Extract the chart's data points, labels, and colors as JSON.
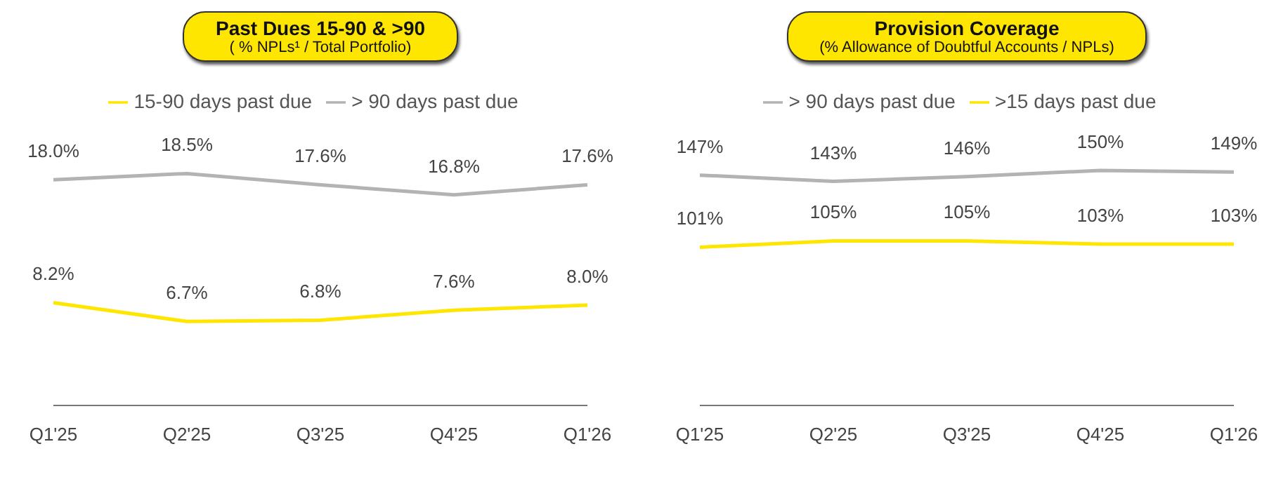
{
  "chart_data": [
    {
      "type": "line",
      "title": "Past Dues 15-90 & >90",
      "subtitle": "( % NPLs¹ / Total Portfolio)",
      "categories": [
        "Q1'25",
        "Q2'25",
        "Q3'25",
        "Q4'25",
        "Q1'26"
      ],
      "legend": "top",
      "marker": "none",
      "series": [
        {
          "name": "15-90 days past due",
          "color": "#ffe600",
          "values": [
            8.2,
            6.7,
            6.8,
            7.6,
            8.0
          ],
          "value_labels": [
            "8.2%",
            "6.7%",
            "6.8%",
            "7.6%",
            "8.0%"
          ]
        },
        {
          "name": "> 90 days past due",
          "color": "#b3b3b3",
          "values": [
            18.0,
            18.5,
            17.6,
            16.8,
            17.6
          ],
          "value_labels": [
            "18.0%",
            "18.5%",
            "17.6%",
            "16.8%",
            "17.6%"
          ]
        }
      ]
    },
    {
      "type": "line",
      "title": "Provision Coverage",
      "subtitle": "(% Allowance of Doubtful Accounts / NPLs)",
      "categories": [
        "Q1'25",
        "Q2'25",
        "Q3'25",
        "Q4'25",
        "Q1'26"
      ],
      "legend": "top",
      "marker": "none",
      "series": [
        {
          "name": ">15 days past due",
          "color": "#ffe600",
          "values": [
            101,
            105,
            105,
            103,
            103
          ],
          "value_labels": [
            "101%",
            "105%",
            "105%",
            "103%",
            "103%"
          ]
        },
        {
          "name": "> 90 days past due",
          "color": "#b3b3b3",
          "values": [
            147,
            143,
            146,
            150,
            149
          ],
          "value_labels": [
            "147%",
            "143%",
            "146%",
            "150%",
            "149%"
          ]
        }
      ]
    }
  ]
}
